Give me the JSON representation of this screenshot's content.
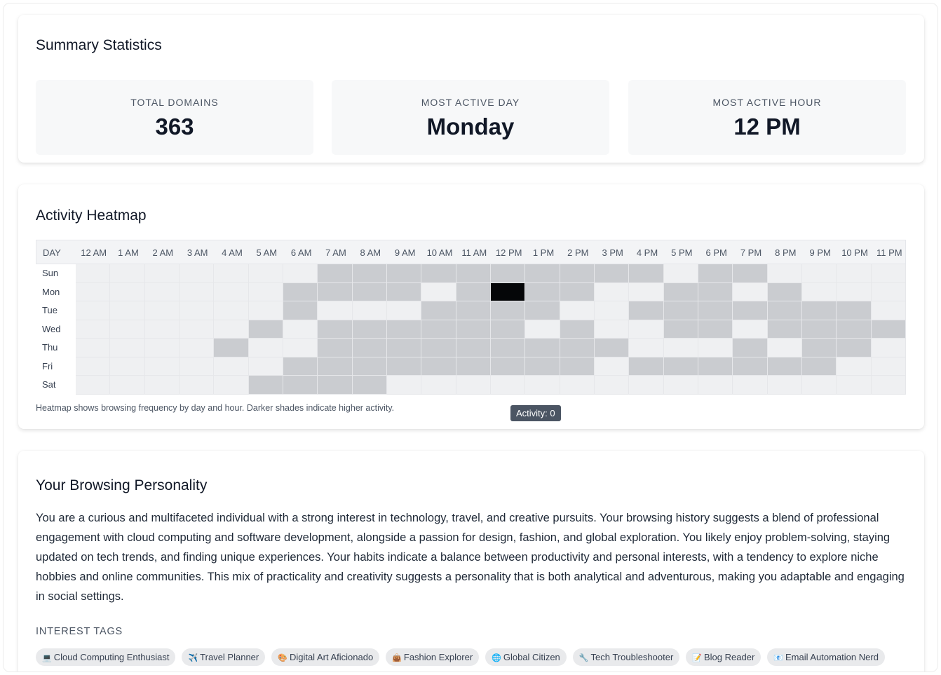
{
  "summary": {
    "title": "Summary Statistics",
    "stats": [
      {
        "label": "TOTAL DOMAINS",
        "value": "363"
      },
      {
        "label": "MOST ACTIVE DAY",
        "value": "Monday"
      },
      {
        "label": "MOST ACTIVE HOUR",
        "value": "12 PM"
      }
    ]
  },
  "heatmap": {
    "title": "Activity Heatmap",
    "day_header": "DAY",
    "hours": [
      "12 AM",
      "1 AM",
      "2 AM",
      "3 AM",
      "4 AM",
      "5 AM",
      "6 AM",
      "7 AM",
      "8 AM",
      "9 AM",
      "10 AM",
      "11 AM",
      "12 PM",
      "1 PM",
      "2 PM",
      "3 PM",
      "4 PM",
      "5 PM",
      "6 PM",
      "7 PM",
      "8 PM",
      "9 PM",
      "10 PM",
      "11 PM"
    ],
    "days": [
      "Sun",
      "Mon",
      "Tue",
      "Wed",
      "Thu",
      "Fri",
      "Sat"
    ],
    "levels": [
      [
        0,
        0,
        0,
        0,
        0,
        0,
        0,
        1,
        1,
        1,
        1,
        1,
        1,
        1,
        1,
        1,
        1,
        0,
        1,
        1,
        0,
        0,
        0,
        0
      ],
      [
        0,
        0,
        0,
        0,
        0,
        0,
        1,
        1,
        1,
        1,
        0,
        1,
        3,
        1,
        1,
        0,
        0,
        1,
        1,
        0,
        1,
        0,
        0,
        0
      ],
      [
        0,
        0,
        0,
        0,
        0,
        0,
        1,
        0,
        0,
        0,
        1,
        1,
        1,
        1,
        0,
        0,
        1,
        1,
        1,
        1,
        1,
        1,
        1,
        0
      ],
      [
        0,
        0,
        0,
        0,
        0,
        1,
        0,
        1,
        1,
        1,
        1,
        1,
        1,
        0,
        1,
        0,
        0,
        1,
        1,
        0,
        1,
        1,
        1,
        1
      ],
      [
        0,
        0,
        0,
        0,
        1,
        0,
        0,
        1,
        1,
        1,
        1,
        1,
        1,
        1,
        1,
        1,
        0,
        0,
        0,
        1,
        0,
        1,
        1,
        0
      ],
      [
        0,
        0,
        0,
        0,
        0,
        0,
        1,
        1,
        1,
        1,
        1,
        1,
        1,
        1,
        1,
        0,
        1,
        1,
        1,
        1,
        1,
        1,
        0,
        0
      ],
      [
        0,
        0,
        0,
        0,
        0,
        1,
        1,
        1,
        1,
        0,
        0,
        0,
        0,
        0,
        0,
        0,
        0,
        0,
        0,
        0,
        0,
        0,
        0,
        0
      ]
    ],
    "level_colors": [
      "#eff0f2",
      "#caccd0",
      "#6b7280",
      "#050608"
    ],
    "empty_color": "#ffffff",
    "note": "Heatmap shows browsing frequency by day and hour. Darker shades indicate higher activity.",
    "tooltip": "Activity: 0"
  },
  "personality": {
    "title": "Your Browsing Personality",
    "description": "You are a curious and multifaceted individual with a strong interest in technology, travel, and creative pursuits. Your browsing history suggests a blend of professional engagement with cloud computing and software development, alongside a passion for design, fashion, and global exploration. You likely enjoy problem-solving, staying updated on tech trends, and finding unique experiences. Your habits indicate a balance between productivity and personal interests, with a tendency to explore niche hobbies and online communities. This mix of practicality and creativity suggests a personality that is both analytical and adventurous, making you adaptable and engaging in social settings.",
    "tags_title": "INTEREST TAGS",
    "tags": [
      {
        "emoji": "💻",
        "label": "Cloud Computing Enthusiast"
      },
      {
        "emoji": "✈️",
        "label": "Travel Planner"
      },
      {
        "emoji": "🎨",
        "label": "Digital Art Aficionado"
      },
      {
        "emoji": "👜",
        "label": "Fashion Explorer"
      },
      {
        "emoji": "🌐",
        "label": "Global Citizen"
      },
      {
        "emoji": "🔧",
        "label": "Tech Troubleshooter"
      },
      {
        "emoji": "📝",
        "label": "Blog Reader"
      },
      {
        "emoji": "📧",
        "label": "Email Automation Nerd"
      }
    ]
  }
}
